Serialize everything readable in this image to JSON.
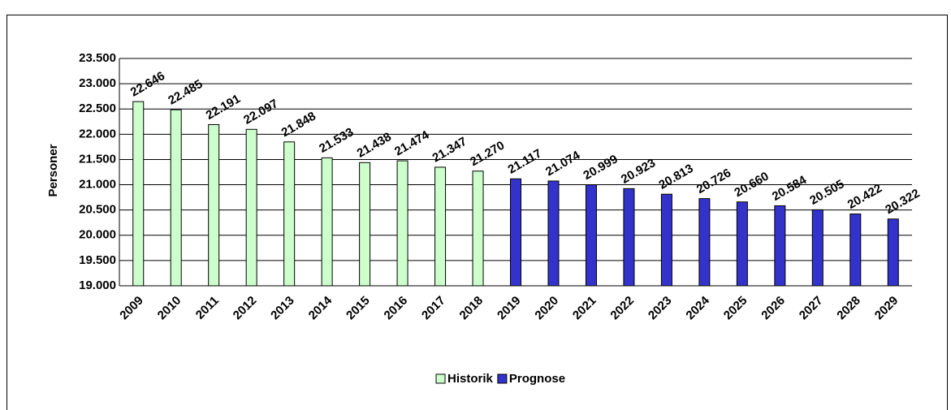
{
  "chart_data": {
    "type": "bar",
    "y_label": "Personer",
    "categories": [
      "2009",
      "2010",
      "2011",
      "2012",
      "2013",
      "2014",
      "2015",
      "2016",
      "2017",
      "2018",
      "2019",
      "2020",
      "2021",
      "2022",
      "2023",
      "2024",
      "2025",
      "2026",
      "2027",
      "2028",
      "2029"
    ],
    "series": [
      {
        "name": "Historik",
        "color": "#ccffcc",
        "values": [
          22646,
          22485,
          22191,
          22097,
          21848,
          21533,
          21438,
          21474,
          21347,
          21270,
          null,
          null,
          null,
          null,
          null,
          null,
          null,
          null,
          null,
          null,
          null
        ],
        "value_labels": [
          "22.646",
          "22.485",
          "22.191",
          "22.097",
          "21.848",
          "21.533",
          "21.438",
          "21.474",
          "21.347",
          "21.270",
          null,
          null,
          null,
          null,
          null,
          null,
          null,
          null,
          null,
          null,
          null
        ]
      },
      {
        "name": "Prognose",
        "color": "#3333cc",
        "values": [
          null,
          null,
          null,
          null,
          null,
          null,
          null,
          null,
          null,
          null,
          21117,
          21074,
          20999,
          20923,
          20813,
          20726,
          20660,
          20584,
          20505,
          20422,
          20322
        ],
        "value_labels": [
          null,
          null,
          null,
          null,
          null,
          null,
          null,
          null,
          null,
          null,
          "21.117",
          "21.074",
          "20.999",
          "20.923",
          "20.813",
          "20.726",
          "20.660",
          "20.584",
          "20.505",
          "20.422",
          "20.322"
        ]
      }
    ],
    "ylim": [
      19000,
      23500
    ],
    "yticks": [
      {
        "value": 19000,
        "label": "19.000"
      },
      {
        "value": 19500,
        "label": "19.500"
      },
      {
        "value": 20000,
        "label": "20.000"
      },
      {
        "value": 20500,
        "label": "20.500"
      },
      {
        "value": 21000,
        "label": "21.000"
      },
      {
        "value": 21500,
        "label": "21.500"
      },
      {
        "value": 22000,
        "label": "22.000"
      },
      {
        "value": 22500,
        "label": "22.500"
      },
      {
        "value": 23000,
        "label": "23.000"
      },
      {
        "value": 23500,
        "label": "23.500"
      }
    ],
    "grid": true,
    "legend": "bottom"
  }
}
